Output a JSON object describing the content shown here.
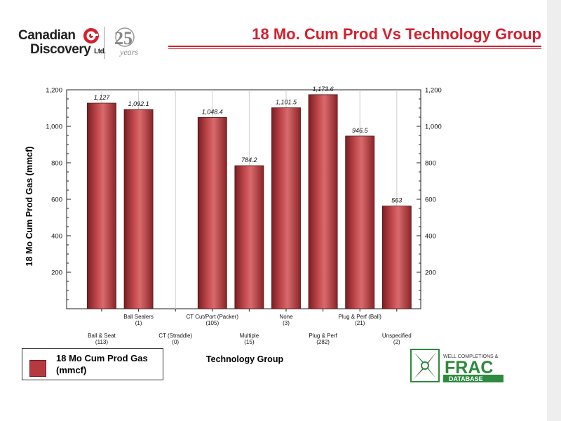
{
  "header": {
    "logo_line1": "Canadian",
    "logo_line2": "Discovery",
    "logo_ltd": "Ltd.",
    "anniversary_number": "25",
    "anniversary_word": "years",
    "title": "18 Mo. Cum Prod Vs Technology Group"
  },
  "legend": {
    "label": "18 Mo Cum Prod Gas (mmcf)"
  },
  "frac_logo": {
    "top_text": "WELL COMPLETIONS &",
    "main_text": "FRAC",
    "sub_text": "DATABASE"
  },
  "chart_data": {
    "type": "bar",
    "title": "",
    "xlabel": "Technology Group",
    "ylabel": "18 Mo Cum Prod Gas (mmcf)",
    "ylim": [
      0,
      1200
    ],
    "y_ticks": [
      200,
      400,
      600,
      800,
      1000,
      1200
    ],
    "y_tick_labels": [
      "200",
      "400",
      "600",
      "800",
      "1,000",
      "1,200"
    ],
    "categories": [
      {
        "name": "Ball & Seat",
        "count": "(113)",
        "row": "lower"
      },
      {
        "name": "Ball Sealers",
        "count": "(1)",
        "row": "upper"
      },
      {
        "name": "CT (Straddle)",
        "count": "(0)",
        "row": "lower"
      },
      {
        "name": "CT Cut/Port (Packer)",
        "count": "(105)",
        "row": "upper"
      },
      {
        "name": "Multiple",
        "count": "(15)",
        "row": "lower"
      },
      {
        "name": "None",
        "count": "(3)",
        "row": "upper"
      },
      {
        "name": "Plug & Perf",
        "count": "(282)",
        "row": "lower"
      },
      {
        "name": "Plug & Perf (Ball)",
        "count": "(21)",
        "row": "upper"
      },
      {
        "name": "Unspecified",
        "count": "(2)",
        "row": "lower"
      }
    ],
    "series": [
      {
        "name": "18 Mo Cum Prod Gas (mmcf)",
        "color": "#b5393e",
        "values": [
          1127,
          1092.1,
          null,
          1048.4,
          784.2,
          1101.5,
          1173.6,
          946.5,
          563
        ],
        "value_labels": [
          "1,127",
          "1,092.1",
          "",
          "1,048.4",
          "784.2",
          "1,101.5",
          "1,173.6",
          "946.5",
          "563"
        ]
      }
    ],
    "grid": "vertical",
    "legend_position": "bottom-left"
  }
}
